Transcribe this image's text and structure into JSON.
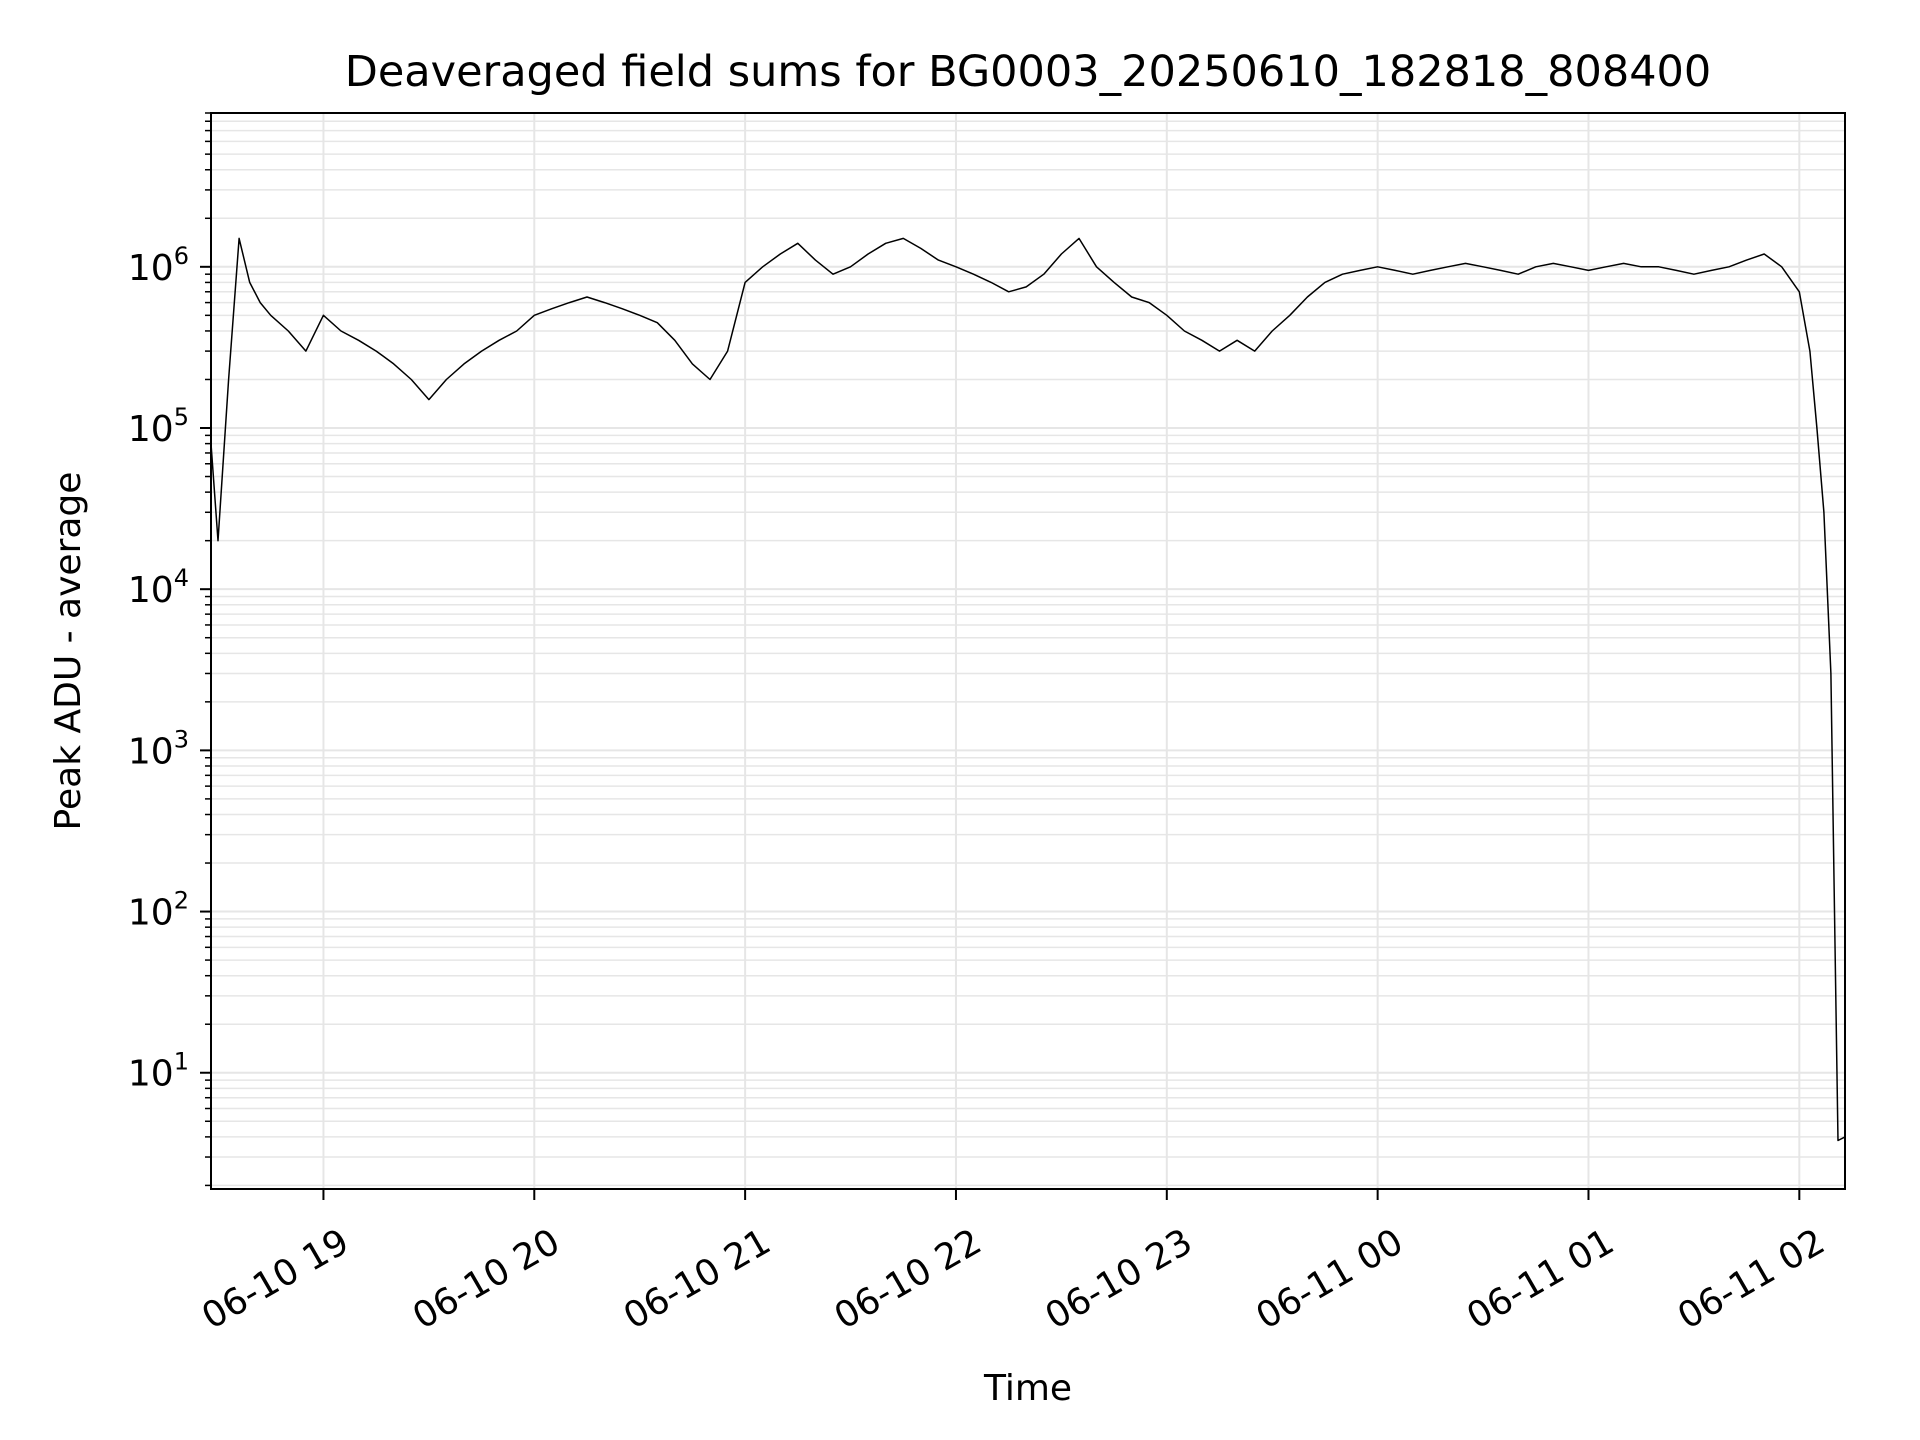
{
  "chart_data": {
    "type": "line",
    "title": "Deaveraged field sums for BG0003_20250610_182818_808400",
    "xlabel": "Time",
    "ylabel": "Peak ADU - average",
    "y_scale": "log",
    "xlim": [
      "06-10 18:28",
      "06-11 02:13"
    ],
    "ylim": [
      1.9,
      9000000
    ],
    "x_ticks": [
      {
        "at": "06-10 19:00",
        "label": "06-10 19"
      },
      {
        "at": "06-10 20:00",
        "label": "06-10 20"
      },
      {
        "at": "06-10 21:00",
        "label": "06-10 21"
      },
      {
        "at": "06-10 22:00",
        "label": "06-10 22"
      },
      {
        "at": "06-10 23:00",
        "label": "06-10 23"
      },
      {
        "at": "06-11 00:00",
        "label": "06-11 00"
      },
      {
        "at": "06-11 01:00",
        "label": "06-11 01"
      },
      {
        "at": "06-11 02:00",
        "label": "06-11 02"
      }
    ],
    "y_ticks": [
      {
        "value": 10,
        "base": "10",
        "exp": "1"
      },
      {
        "value": 100,
        "base": "10",
        "exp": "2"
      },
      {
        "value": 1000,
        "base": "10",
        "exp": "3"
      },
      {
        "value": 10000,
        "base": "10",
        "exp": "4"
      },
      {
        "value": 100000,
        "base": "10",
        "exp": "5"
      },
      {
        "value": 1000000,
        "base": "10",
        "exp": "6"
      }
    ],
    "grid": true,
    "grid_color": "#e6e6e6",
    "line_color": "#000000",
    "series": [
      {
        "x": [
          "06-10 18:28",
          "06-10 18:30",
          "06-10 18:33",
          "06-10 18:36",
          "06-10 18:39",
          "06-10 18:42",
          "06-10 18:45",
          "06-10 18:50",
          "06-10 18:55",
          "06-10 19:00",
          "06-10 19:05",
          "06-10 19:10",
          "06-10 19:15",
          "06-10 19:20",
          "06-10 19:25",
          "06-10 19:30",
          "06-10 19:35",
          "06-10 19:40",
          "06-10 19:45",
          "06-10 19:50",
          "06-10 19:55",
          "06-10 20:00",
          "06-10 20:05",
          "06-10 20:10",
          "06-10 20:15",
          "06-10 20:20",
          "06-10 20:25",
          "06-10 20:30",
          "06-10 20:35",
          "06-10 20:40",
          "06-10 20:45",
          "06-10 20:50",
          "06-10 20:55",
          "06-10 21:00",
          "06-10 21:05",
          "06-10 21:10",
          "06-10 21:15",
          "06-10 21:20",
          "06-10 21:25",
          "06-10 21:30",
          "06-10 21:35",
          "06-10 21:40",
          "06-10 21:45",
          "06-10 21:50",
          "06-10 21:55",
          "06-10 22:00",
          "06-10 22:05",
          "06-10 22:10",
          "06-10 22:15",
          "06-10 22:20",
          "06-10 22:25",
          "06-10 22:30",
          "06-10 22:35",
          "06-10 22:40",
          "06-10 22:45",
          "06-10 22:50",
          "06-10 22:55",
          "06-10 23:00",
          "06-10 23:05",
          "06-10 23:10",
          "06-10 23:15",
          "06-10 23:20",
          "06-10 23:25",
          "06-10 23:30",
          "06-10 23:35",
          "06-10 23:40",
          "06-10 23:45",
          "06-10 23:50",
          "06-10 23:55",
          "06-11 00:00",
          "06-11 00:05",
          "06-11 00:10",
          "06-11 00:15",
          "06-11 00:20",
          "06-11 00:25",
          "06-11 00:30",
          "06-11 00:35",
          "06-11 00:40",
          "06-11 00:45",
          "06-11 00:50",
          "06-11 00:55",
          "06-11 01:00",
          "06-11 01:05",
          "06-11 01:10",
          "06-11 01:15",
          "06-11 01:20",
          "06-11 01:25",
          "06-11 01:30",
          "06-11 01:35",
          "06-11 01:40",
          "06-11 01:45",
          "06-11 01:50",
          "06-11 01:55",
          "06-11 02:00",
          "06-11 02:03",
          "06-11 02:05",
          "06-11 02:07",
          "06-11 02:09",
          "06-11 02:10",
          "06-11 02:11",
          "06-11 02:13"
        ],
        "values": [
          80000,
          20000,
          200000,
          1500000,
          800000,
          600000,
          500000,
          400000,
          300000,
          500000,
          400000,
          350000,
          300000,
          250000,
          200000,
          150000,
          200000,
          250000,
          300000,
          350000,
          400000,
          500000,
          550000,
          600000,
          650000,
          600000,
          550000,
          500000,
          450000,
          350000,
          250000,
          200000,
          300000,
          800000,
          1000000,
          1200000,
          1400000,
          1100000,
          900000,
          1000000,
          1200000,
          1400000,
          1500000,
          1300000,
          1100000,
          1000000,
          900000,
          800000,
          700000,
          750000,
          900000,
          1200000,
          1500000,
          1000000,
          800000,
          650000,
          600000,
          500000,
          400000,
          350000,
          300000,
          350000,
          300000,
          400000,
          500000,
          650000,
          800000,
          900000,
          950000,
          1000000,
          950000,
          900000,
          950000,
          1000000,
          1050000,
          1000000,
          950000,
          900000,
          1000000,
          1050000,
          1000000,
          950000,
          1000000,
          1050000,
          1000000,
          1000000,
          950000,
          900000,
          950000,
          1000000,
          1100000,
          1200000,
          1000000,
          700000,
          300000,
          100000,
          30000,
          3000,
          100,
          3.8,
          4
        ]
      }
    ]
  }
}
